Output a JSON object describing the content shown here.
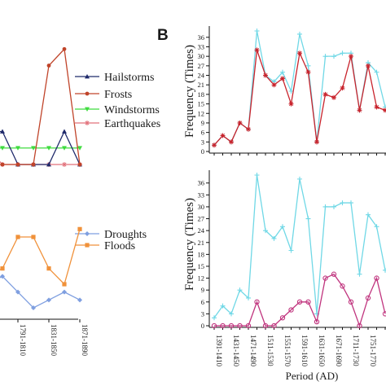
{
  "colors": {
    "hailstorms": "#1f2a6b",
    "frosts": "#c0442a",
    "windstorms": "#3fdc3f",
    "earthquakes": "#e2707a",
    "droughts": "#7f9fe0",
    "floods": "#f0913a",
    "droughts_b": "#70d8e6",
    "red_b": "#c8232c",
    "magenta_b": "#c0347e",
    "axis": "#111111"
  },
  "chart_data": [
    {
      "type": "line",
      "panel": "A-top (cropped)",
      "x": [
        "1751-1770",
        "1771-1790",
        "1791-1810",
        "1811-1830",
        "1831-1850",
        "1851-1870",
        "1871-1890"
      ],
      "series": [
        {
          "name": "Hailstorms",
          "color_key": "hailstorms",
          "marker": "triangle",
          "values": [
            2,
            2,
            0,
            0,
            0,
            2,
            0
          ]
        },
        {
          "name": "Frosts",
          "color_key": "frosts",
          "marker": "circle",
          "values": [
            0,
            0,
            0,
            0,
            6,
            7,
            0
          ]
        },
        {
          "name": "Windstorms",
          "color_key": "windstorms",
          "marker": "triangle-down",
          "values": [
            1,
            1,
            1,
            1,
            1,
            1,
            1
          ]
        },
        {
          "name": "Earthquakes",
          "color_key": "earthquakes",
          "marker": "star",
          "values": [
            1,
            0,
            0,
            0,
            0,
            0,
            0
          ]
        }
      ],
      "ylim": [
        0,
        8
      ]
    },
    {
      "type": "line",
      "panel": "A-bottom (cropped)",
      "x": [
        "1751-1770",
        "1771-1790",
        "1791-1810",
        "1811-1830",
        "1831-1850",
        "1851-1870",
        "1871-1890"
      ],
      "series": [
        {
          "name": "Droughts",
          "color_key": "droughts",
          "marker": "diamond",
          "values": [
            3,
            4,
            2,
            0,
            1,
            2,
            1
          ]
        },
        {
          "name": "Floods",
          "color_key": "floods",
          "marker": "square",
          "values": [
            4,
            5,
            9,
            9,
            5,
            3,
            10
          ]
        }
      ],
      "ylim": [
        0,
        12
      ]
    },
    {
      "type": "line",
      "panel": "B-top",
      "ylabel": "Frequency (Times)",
      "yticks": [
        0,
        3,
        6,
        9,
        12,
        15,
        18,
        21,
        24,
        27,
        30,
        33,
        36
      ],
      "ylim": [
        0,
        38
      ],
      "series": [
        {
          "color_key": "droughts_b",
          "marker": "plus",
          "values": [
            2,
            5,
            3,
            9,
            7,
            38,
            24,
            22,
            25,
            19,
            37,
            27,
            3,
            30,
            30,
            31,
            31,
            13,
            28,
            25,
            14
          ]
        },
        {
          "color_key": "red_b",
          "marker": "cross",
          "values": [
            2,
            5,
            3,
            9,
            7,
            32,
            24,
            21,
            23,
            15,
            31,
            25,
            3,
            18,
            17,
            20,
            30,
            13,
            27,
            14,
            13
          ]
        }
      ]
    },
    {
      "type": "line",
      "panel": "B-bottom",
      "ylabel": "Frequency (Times)",
      "xlabel": "Period (AD)",
      "yticks": [
        0,
        3,
        6,
        9,
        12,
        15,
        18,
        21,
        24,
        27,
        30,
        33,
        36
      ],
      "ylim": [
        0,
        38
      ],
      "x_tick_labels": [
        "1391-1410",
        "1431-1450",
        "1471-1490",
        "1511-1530",
        "1551-1570",
        "1591-1610",
        "1631-1650",
        "1671-1690",
        "1711-1730",
        "1751-1770"
      ],
      "series": [
        {
          "color_key": "droughts_b",
          "marker": "plus",
          "values": [
            2,
            5,
            3,
            9,
            7,
            38,
            24,
            22,
            25,
            19,
            37,
            27,
            3,
            30,
            30,
            31,
            31,
            13,
            28,
            25,
            14
          ]
        },
        {
          "color_key": "magenta_b",
          "marker": "circle-open",
          "values": [
            0,
            0,
            0,
            0,
            0,
            6,
            0,
            0,
            2,
            4,
            6,
            6,
            1,
            12,
            13,
            10,
            6,
            0,
            7,
            12,
            3
          ]
        }
      ]
    }
  ],
  "panel_b_letter": "B",
  "legend_a_top": [
    "Hailstorms",
    "Frosts",
    "Windstorms",
    "Earthquakes"
  ],
  "legend_a_bottom": [
    "Droughts",
    "Floods"
  ],
  "a_xticks": [
    "1751-1770",
    "1791-1810",
    "1831-1850",
    "1871-1890"
  ]
}
